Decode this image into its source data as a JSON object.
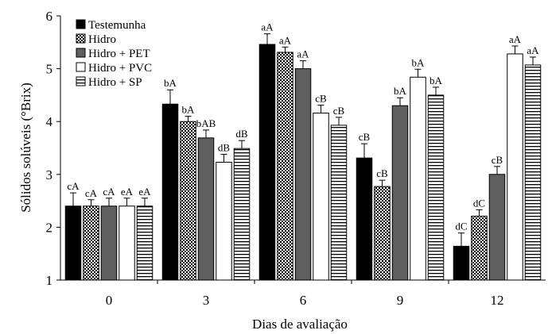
{
  "chart_data": {
    "type": "bar",
    "title": "",
    "xlabel": "Dias de avaliação",
    "ylabel": "Sólidos solúveis (°Brix)",
    "ylim": [
      1,
      6
    ],
    "yticks": [
      "1",
      "2",
      "3",
      "4",
      "5",
      "6"
    ],
    "categories": [
      "0",
      "3",
      "6",
      "9",
      "12"
    ],
    "grid": false,
    "legend_position": "top-left",
    "error_bars": true,
    "series": [
      {
        "name": "Testemunha",
        "pattern": "solid-black",
        "values": [
          2.4,
          4.33,
          5.46,
          3.31,
          1.64
        ],
        "errors": [
          0.25,
          0.27,
          0.2,
          0.27,
          0.25
        ],
        "labels": [
          "cA",
          "bA",
          "aA",
          "cB",
          "dC"
        ]
      },
      {
        "name": "Hidro",
        "pattern": "dotted",
        "values": [
          2.4,
          4.0,
          5.31,
          2.77,
          2.21
        ],
        "errors": [
          0.12,
          0.1,
          0.1,
          0.12,
          0.12
        ],
        "labels": [
          "cA",
          "bA",
          "aA",
          "cB",
          "dC"
        ]
      },
      {
        "name": "Hidro + PET",
        "pattern": "solid-gray",
        "values": [
          2.4,
          3.69,
          5.0,
          4.3,
          3.0
        ],
        "errors": [
          0.15,
          0.15,
          0.15,
          0.15,
          0.15
        ],
        "labels": [
          "cA",
          "bAB",
          "aA",
          "bA",
          "cB"
        ]
      },
      {
        "name": "Hidro + PVC",
        "pattern": "white",
        "values": [
          2.4,
          3.23,
          4.16,
          4.84,
          5.28
        ],
        "errors": [
          0.15,
          0.15,
          0.15,
          0.15,
          0.15
        ],
        "labels": [
          "eA",
          "dB",
          "cB",
          "bA",
          "aA"
        ]
      },
      {
        "name": "Hidro + SP",
        "pattern": "horizontal-lines",
        "values": [
          2.4,
          3.49,
          3.93,
          4.5,
          5.07
        ],
        "errors": [
          0.15,
          0.15,
          0.15,
          0.15,
          0.15
        ],
        "labels": [
          "eA",
          "dB",
          "cB",
          "bA",
          "aA"
        ]
      }
    ]
  }
}
